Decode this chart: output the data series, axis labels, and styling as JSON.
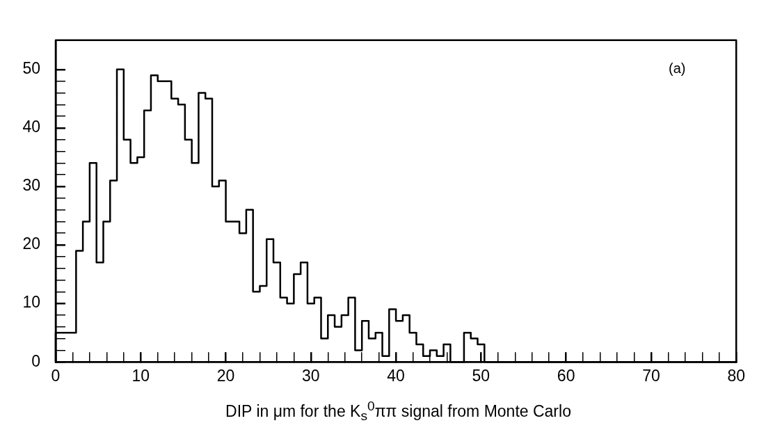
{
  "chart_data": {
    "type": "histogram",
    "xlabel": "DIP in μm for the K$_{s}$$^{0}$ππ signal from Monte Carlo",
    "annotations": [
      "(a)"
    ],
    "bins": [
      0,
      0.8,
      1.6,
      2.4,
      3.2,
      4,
      4.8,
      5.6,
      6.4,
      7.2,
      8,
      8.8,
      9.6,
      10.4,
      11.2,
      12,
      12.8,
      13.6,
      14.4,
      15.2,
      16,
      16.8,
      17.6,
      18.4,
      19.2,
      20,
      20.8,
      21.6,
      22.4,
      23.2,
      24,
      24.8,
      25.6,
      26.4,
      27.2,
      28,
      28.8,
      29.6,
      30.4,
      31.2,
      32,
      32.8,
      33.6,
      34.4,
      35.2,
      36,
      36.8,
      37.6,
      38.4,
      39.2,
      40,
      40.8,
      41.6,
      42.4,
      43.2,
      44,
      44.8,
      45.6,
      46.4,
      47.2,
      48,
      48.8,
      49.6,
      50.4,
      51.2,
      52,
      52.8,
      53.6,
      54.4,
      55.2,
      56,
      56.8,
      57.6,
      58.4,
      59.2,
      60,
      60.8,
      61.6,
      62.4,
      63.2,
      64,
      64.8,
      65.6,
      66.4,
      67.2,
      68,
      68.8,
      69.6,
      70.4,
      71.2,
      72,
      72.8,
      73.6,
      74.4,
      75.2,
      76,
      76.8,
      77.6,
      78.4,
      79.2,
      80
    ],
    "series": [
      {
        "color": "#000000",
        "values": [
          5,
          5,
          5,
          19,
          24,
          34,
          17,
          24,
          31,
          50,
          38,
          34,
          35,
          43,
          49,
          48,
          48,
          45,
          44,
          38,
          34,
          46,
          45,
          30,
          31,
          24,
          24,
          22,
          26,
          12,
          13,
          21,
          17,
          11,
          10,
          15,
          17,
          10,
          11,
          4,
          8,
          6,
          8,
          11,
          2,
          7,
          4,
          5,
          1,
          9,
          7,
          8,
          5,
          3,
          1,
          2,
          1,
          3,
          0,
          0,
          5,
          4,
          3,
          0,
          0,
          0,
          0,
          0,
          0,
          0,
          0,
          0,
          0,
          0,
          0,
          0,
          0,
          0,
          0,
          0,
          0,
          0,
          0,
          0,
          0,
          0,
          0,
          0,
          0,
          0,
          0,
          0,
          0,
          0,
          0,
          0,
          0,
          0,
          0,
          0
        ]
      }
    ],
    "xlim": [
      0,
      80
    ],
    "xticks": [
      0,
      {
        "value": 2,
        "label": null
      },
      {
        "value": 4,
        "label": null
      },
      {
        "value": 6,
        "label": null
      },
      {
        "value": 8,
        "label": null
      },
      10,
      {
        "value": 12,
        "label": null
      },
      {
        "value": 14,
        "label": null
      },
      {
        "value": 16,
        "label": null
      },
      {
        "value": 18,
        "label": null
      },
      20,
      {
        "value": 22,
        "label": null
      },
      {
        "value": 24,
        "label": null
      },
      {
        "value": 26,
        "label": null
      },
      {
        "value": 28,
        "label": null
      },
      30,
      {
        "value": 32,
        "label": null
      },
      {
        "value": 34,
        "label": null
      },
      {
        "value": 36,
        "label": null
      },
      {
        "value": 38,
        "label": null
      },
      40,
      {
        "value": 42,
        "label": null
      },
      {
        "value": 44,
        "label": null
      },
      {
        "value": 46,
        "label": null
      },
      {
        "value": 48,
        "label": null
      },
      50,
      {
        "value": 52,
        "label": null
      },
      {
        "value": 54,
        "label": null
      },
      {
        "value": 56,
        "label": null
      },
      {
        "value": 58,
        "label": null
      },
      60,
      {
        "value": 62,
        "label": null
      },
      {
        "value": 64,
        "label": null
      },
      {
        "value": 66,
        "label": null
      },
      {
        "value": 68,
        "label": null
      },
      70,
      {
        "value": 72,
        "label": null
      },
      {
        "value": 74,
        "label": null
      },
      {
        "value": 76,
        "label": null
      },
      {
        "value": 78,
        "label": null
      },
      80
    ],
    "ylim": [
      0,
      55
    ],
    "yticks": [
      0,
      {
        "value": 2,
        "label": null
      },
      {
        "value": 4,
        "label": null
      },
      {
        "value": 6,
        "label": null
      },
      {
        "value": 8,
        "label": null
      },
      10,
      {
        "value": 12,
        "label": null
      },
      {
        "value": 14,
        "label": null
      },
      {
        "value": 16,
        "label": null
      },
      {
        "value": 18,
        "label": null
      },
      20,
      {
        "value": 22,
        "label": null
      },
      {
        "value": 24,
        "label": null
      },
      {
        "value": 26,
        "label": null
      },
      {
        "value": 28,
        "label": null
      },
      30,
      {
        "value": 32,
        "label": null
      },
      {
        "value": 34,
        "label": null
      },
      {
        "value": 36,
        "label": null
      },
      {
        "value": 38,
        "label": null
      },
      40,
      {
        "value": 42,
        "label": null
      },
      {
        "value": 44,
        "label": null
      },
      {
        "value": 46,
        "label": null
      },
      {
        "value": 48,
        "label": null
      },
      50
    ],
    "grid": false
  }
}
